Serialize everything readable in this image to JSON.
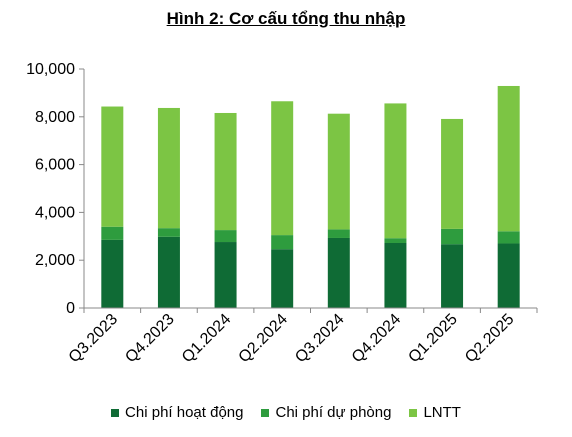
{
  "chart_data": {
    "type": "bar",
    "stacked": true,
    "title": "Hình 2: Cơ cấu tổng thu nhập",
    "categories": [
      "Q3.2023",
      "Q4.2023",
      "Q1.2024",
      "Q2.2024",
      "Q3.2024",
      "Q4.2024",
      "Q1.2025",
      "Q2.2025"
    ],
    "series": [
      {
        "name": "Chi phí hoạt động",
        "color": "#0f6b35",
        "values": [
          2850,
          2980,
          2760,
          2460,
          2930,
          2720,
          2670,
          2700
        ]
      },
      {
        "name": "Chi phí dự phòng",
        "color": "#2e9c3e",
        "values": [
          550,
          360,
          500,
          590,
          360,
          200,
          640,
          510
        ]
      },
      {
        "name": "LNTT",
        "color": "#7cc544",
        "values": [
          5030,
          5030,
          4900,
          5600,
          4840,
          5640,
          4600,
          6080
        ]
      }
    ],
    "yticks": [
      "0",
      "2,000",
      "4,000",
      "6,000",
      "8,000",
      "10,000"
    ],
    "ylim": [
      0,
      10000
    ],
    "grid": false,
    "legend_position": "bottom"
  }
}
